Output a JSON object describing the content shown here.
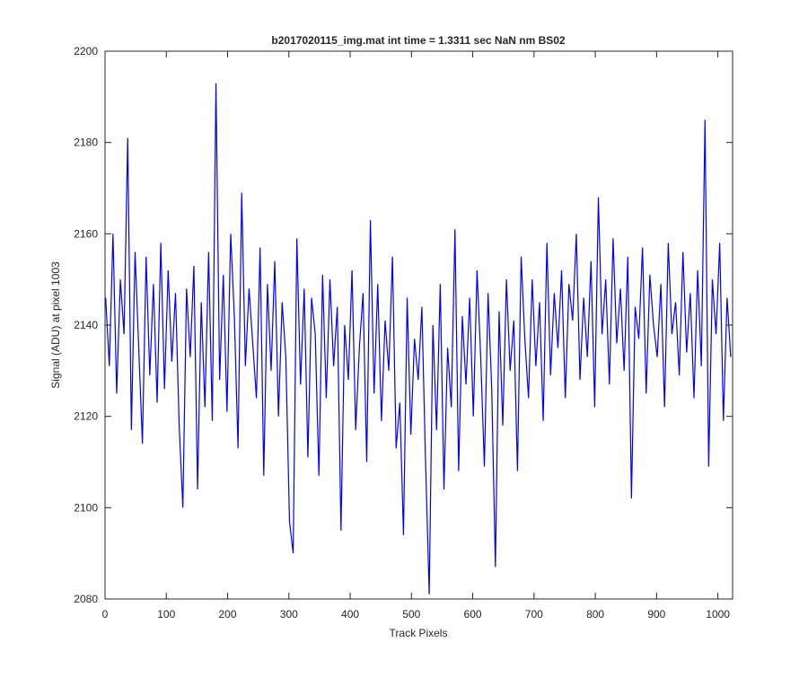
{
  "chart_data": {
    "type": "line",
    "title": "b2017020115_img.mat int time = 1.3311 sec  NaN nm BS02",
    "xlabel": "Track Pixels",
    "ylabel": "Signal (ADU) at pixel 1003",
    "color": "#0000ff",
    "xlim": [
      0,
      1024
    ],
    "ylim": [
      2080,
      2200
    ],
    "xticks": [
      0,
      100,
      200,
      300,
      400,
      500,
      600,
      700,
      800,
      900,
      1000
    ],
    "yticks": [
      2080,
      2100,
      2120,
      2140,
      2160,
      2180,
      2200
    ],
    "x": [
      1,
      7,
      13,
      19,
      25,
      31,
      37,
      43,
      49,
      55,
      61,
      67,
      73,
      79,
      85,
      91,
      97,
      103,
      109,
      115,
      121,
      127,
      133,
      139,
      145,
      151,
      157,
      163,
      169,
      175,
      181,
      187,
      193,
      199,
      205,
      211,
      217,
      223,
      229,
      235,
      241,
      247,
      253,
      259,
      265,
      271,
      277,
      283,
      289,
      295,
      301,
      307,
      313,
      319,
      325,
      331,
      337,
      343,
      349,
      355,
      361,
      367,
      373,
      379,
      385,
      391,
      397,
      403,
      409,
      415,
      421,
      427,
      433,
      439,
      445,
      451,
      457,
      463,
      469,
      475,
      481,
      487,
      493,
      499,
      505,
      511,
      517,
      523,
      529,
      535,
      541,
      547,
      553,
      559,
      565,
      571,
      577,
      583,
      589,
      595,
      601,
      607,
      613,
      619,
      625,
      631,
      637,
      643,
      649,
      655,
      661,
      667,
      673,
      679,
      685,
      691,
      697,
      703,
      709,
      715,
      721,
      727,
      733,
      739,
      745,
      751,
      757,
      763,
      769,
      775,
      781,
      787,
      793,
      799,
      805,
      811,
      817,
      823,
      829,
      835,
      841,
      847,
      853,
      859,
      865,
      871,
      877,
      883,
      889,
      895,
      901,
      907,
      913,
      919,
      925,
      931,
      937,
      943,
      949,
      955,
      961,
      967,
      973,
      979,
      985,
      991,
      997,
      1003,
      1009,
      1015,
      1021
    ],
    "values": [
      2146,
      2131,
      2160,
      2125,
      2150,
      2138,
      2181,
      2117,
      2156,
      2135,
      2114,
      2155,
      2129,
      2149,
      2123,
      2158,
      2126,
      2152,
      2132,
      2147,
      2118,
      2100,
      2148,
      2133,
      2153,
      2104,
      2145,
      2122,
      2156,
      2119,
      2193,
      2128,
      2151,
      2121,
      2160,
      2142,
      2113,
      2169,
      2131,
      2148,
      2136,
      2124,
      2157,
      2107,
      2149,
      2130,
      2154,
      2120,
      2145,
      2133,
      2097,
      2090,
      2159,
      2127,
      2148,
      2111,
      2146,
      2138,
      2107,
      2151,
      2124,
      2150,
      2131,
      2144,
      2095,
      2140,
      2128,
      2152,
      2117,
      2135,
      2147,
      2110,
      2163,
      2125,
      2149,
      2119,
      2141,
      2130,
      2155,
      2113,
      2123,
      2094,
      2146,
      2116,
      2137,
      2128,
      2144,
      2110,
      2081,
      2140,
      2117,
      2149,
      2104,
      2135,
      2122,
      2161,
      2108,
      2142,
      2127,
      2146,
      2120,
      2152,
      2133,
      2109,
      2147,
      2126,
      2087,
      2143,
      2118,
      2150,
      2130,
      2141,
      2108,
      2155,
      2137,
      2124,
      2150,
      2131,
      2145,
      2119,
      2158,
      2129,
      2147,
      2135,
      2152,
      2124,
      2149,
      2141,
      2160,
      2128,
      2146,
      2133,
      2154,
      2122,
      2168,
      2138,
      2150,
      2127,
      2159,
      2136,
      2148,
      2130,
      2155,
      2102,
      2144,
      2137,
      2157,
      2125,
      2151,
      2140,
      2133,
      2149,
      2122,
      2158,
      2138,
      2145,
      2129,
      2156,
      2134,
      2147,
      2124,
      2152,
      2131,
      2185,
      2109,
      2150,
      2138,
      2158,
      2119,
      2146,
      2133
    ]
  }
}
